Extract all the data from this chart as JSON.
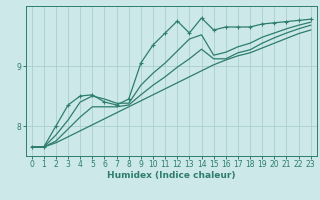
{
  "xlabel": "Humidex (Indice chaleur)",
  "ylabel": "",
  "background_color": "#cce8e8",
  "line_color": "#2e7d6e",
  "grid_color": "#aacece",
  "x_values": [
    0,
    1,
    2,
    3,
    4,
    5,
    6,
    7,
    8,
    9,
    10,
    11,
    12,
    13,
    14,
    15,
    16,
    17,
    18,
    19,
    20,
    21,
    22,
    23
  ],
  "series": [
    [
      7.65,
      7.65,
      8.0,
      8.35,
      8.5,
      8.52,
      8.4,
      8.35,
      8.45,
      9.05,
      9.35,
      9.55,
      9.75,
      9.55,
      9.8,
      9.6,
      9.65,
      9.65,
      9.65,
      9.7,
      9.72,
      9.74,
      9.76,
      9.78
    ],
    [
      7.65,
      7.65,
      7.85,
      8.1,
      8.4,
      8.5,
      8.45,
      8.38,
      8.38,
      8.68,
      8.88,
      9.05,
      9.25,
      9.45,
      9.52,
      9.18,
      9.23,
      9.32,
      9.38,
      9.48,
      9.55,
      9.62,
      9.68,
      9.73
    ],
    [
      7.65,
      7.65,
      7.75,
      7.95,
      8.15,
      8.32,
      8.32,
      8.32,
      8.35,
      8.52,
      8.68,
      8.82,
      8.98,
      9.12,
      9.28,
      9.12,
      9.12,
      9.22,
      9.27,
      9.38,
      9.47,
      9.55,
      9.62,
      9.68
    ],
    [
      7.65,
      7.65,
      7.72,
      7.82,
      7.92,
      8.02,
      8.12,
      8.22,
      8.32,
      8.42,
      8.52,
      8.62,
      8.72,
      8.82,
      8.92,
      9.02,
      9.1,
      9.17,
      9.22,
      9.3,
      9.38,
      9.46,
      9.54,
      9.6
    ]
  ],
  "ylim": [
    7.5,
    10.0
  ],
  "xlim": [
    -0.5,
    23.5
  ],
  "yticks": [
    8,
    9
  ],
  "xticks": [
    0,
    1,
    2,
    3,
    4,
    5,
    6,
    7,
    8,
    9,
    10,
    11,
    12,
    13,
    14,
    15,
    16,
    17,
    18,
    19,
    20,
    21,
    22,
    23
  ],
  "marker": "+",
  "linewidth": 0.9,
  "markersize": 3.5,
  "xlabel_fontsize": 6.5,
  "tick_fontsize": 5.5
}
